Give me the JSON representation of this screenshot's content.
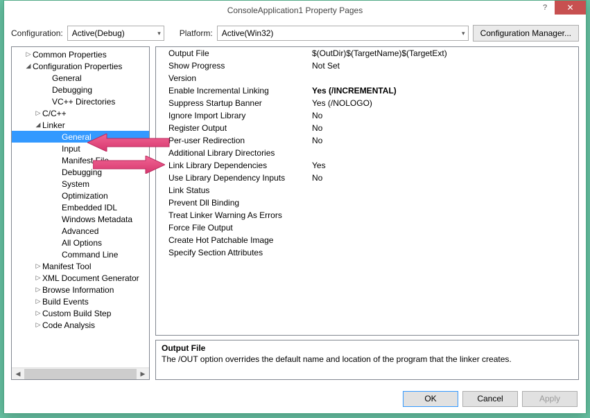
{
  "window": {
    "title": "ConsoleApplication1 Property Pages"
  },
  "configbar": {
    "config_label": "Configuration:",
    "config_value": "Active(Debug)",
    "platform_label": "Platform:",
    "platform_value": "Active(Win32)",
    "manager_label": "Configuration Manager..."
  },
  "tree": [
    {
      "indent": 1,
      "arrow": "▷",
      "label": "Common Properties"
    },
    {
      "indent": 1,
      "arrow": "◢",
      "label": "Configuration Properties"
    },
    {
      "indent": 3,
      "arrow": "",
      "label": "General"
    },
    {
      "indent": 3,
      "arrow": "",
      "label": "Debugging"
    },
    {
      "indent": 3,
      "arrow": "",
      "label": "VC++ Directories"
    },
    {
      "indent": 2,
      "arrow": "▷",
      "label": "C/C++"
    },
    {
      "indent": 2,
      "arrow": "◢",
      "label": "Linker"
    },
    {
      "indent": 4,
      "arrow": "",
      "label": "General",
      "selected": true
    },
    {
      "indent": 4,
      "arrow": "",
      "label": "Input"
    },
    {
      "indent": 4,
      "arrow": "",
      "label": "Manifest File"
    },
    {
      "indent": 4,
      "arrow": "",
      "label": "Debugging"
    },
    {
      "indent": 4,
      "arrow": "",
      "label": "System"
    },
    {
      "indent": 4,
      "arrow": "",
      "label": "Optimization"
    },
    {
      "indent": 4,
      "arrow": "",
      "label": "Embedded IDL"
    },
    {
      "indent": 4,
      "arrow": "",
      "label": "Windows Metadata"
    },
    {
      "indent": 4,
      "arrow": "",
      "label": "Advanced"
    },
    {
      "indent": 4,
      "arrow": "",
      "label": "All Options"
    },
    {
      "indent": 4,
      "arrow": "",
      "label": "Command Line"
    },
    {
      "indent": 2,
      "arrow": "▷",
      "label": "Manifest Tool"
    },
    {
      "indent": 2,
      "arrow": "▷",
      "label": "XML Document Generator"
    },
    {
      "indent": 2,
      "arrow": "▷",
      "label": "Browse Information"
    },
    {
      "indent": 2,
      "arrow": "▷",
      "label": "Build Events"
    },
    {
      "indent": 2,
      "arrow": "▷",
      "label": "Custom Build Step"
    },
    {
      "indent": 2,
      "arrow": "▷",
      "label": "Code Analysis"
    }
  ],
  "grid": [
    {
      "k": "Output File",
      "v": "$(OutDir)$(TargetName)$(TargetExt)"
    },
    {
      "k": "Show Progress",
      "v": "Not Set"
    },
    {
      "k": "Version",
      "v": ""
    },
    {
      "k": "Enable Incremental Linking",
      "v": "Yes (/INCREMENTAL)",
      "bold": true
    },
    {
      "k": "Suppress Startup Banner",
      "v": "Yes (/NOLOGO)"
    },
    {
      "k": "Ignore Import Library",
      "v": "No"
    },
    {
      "k": "Register Output",
      "v": "No"
    },
    {
      "k": "Per-user Redirection",
      "v": "No"
    },
    {
      "k": "Additional Library Directories",
      "v": ""
    },
    {
      "k": "Link Library Dependencies",
      "v": "Yes"
    },
    {
      "k": "Use Library Dependency Inputs",
      "v": "No"
    },
    {
      "k": "Link Status",
      "v": ""
    },
    {
      "k": "Prevent Dll Binding",
      "v": ""
    },
    {
      "k": "Treat Linker Warning As Errors",
      "v": ""
    },
    {
      "k": "Force File Output",
      "v": ""
    },
    {
      "k": "Create Hot Patchable Image",
      "v": ""
    },
    {
      "k": "Specify Section Attributes",
      "v": ""
    }
  ],
  "desc": {
    "title": "Output File",
    "text": "The /OUT option overrides the default name and location of the program that the linker creates."
  },
  "footer": {
    "ok": "OK",
    "cancel": "Cancel",
    "apply": "Apply"
  },
  "annotations": {
    "arrow_color": "#e94b86"
  }
}
